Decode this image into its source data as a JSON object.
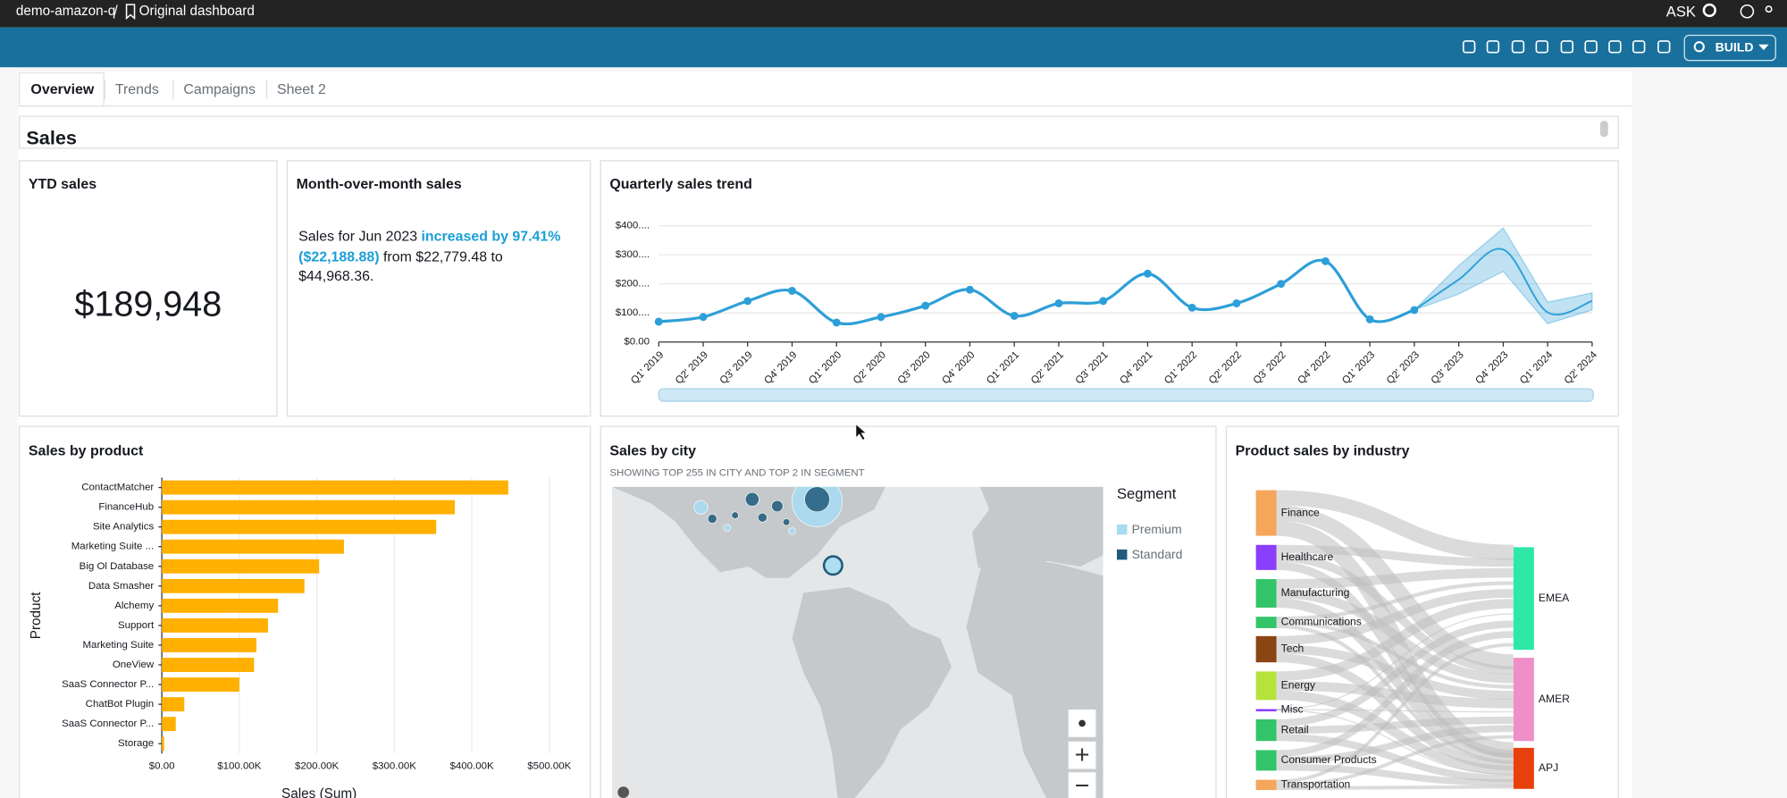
{
  "header": {
    "breadcrumb": "demo-amazon-q",
    "separator": "/",
    "dashboard": "Original dashboard",
    "ask": "ASK",
    "build": "BUILD"
  },
  "tabs": [
    "Overview",
    "Trends",
    "Campaigns",
    "Sheet 2"
  ],
  "section": "Sales",
  "ytd": {
    "title": "YTD sales",
    "value": "$189,948"
  },
  "mom": {
    "title": "Month-over-month sales",
    "prefix": "Sales for Jun 2023",
    "change": "increased by 97.41%",
    "change_amount": "($22,188.88)",
    "from": "from $22,779.48 to",
    "to": "$44,968.36."
  },
  "chart_data": [
    {
      "type": "line",
      "title": "Quarterly sales trend",
      "categories": [
        "Q1' 2019",
        "Q2' 2019",
        "Q3' 2019",
        "Q4' 2019",
        "Q1' 2020",
        "Q2' 2020",
        "Q3' 2020",
        "Q4' 2020",
        "Q1' 2021",
        "Q2' 2021",
        "Q3' 2021",
        "Q4' 2021",
        "Q1' 2022",
        "Q2' 2022",
        "Q3' 2022",
        "Q4' 2022",
        "Q1' 2023",
        "Q2' 2023",
        "Q3' 2023",
        "Q4' 2023",
        "Q1' 2024",
        "Q2' 2024"
      ],
      "series": [
        {
          "color": "#2d9fd8",
          "values": [
            70000,
            86000,
            141000,
            176000,
            67000,
            86000,
            125000,
            180000,
            90000,
            133000,
            141000,
            235000,
            118000,
            133000,
            200000,
            278000,
            78000,
            110000,
            null,
            null,
            null,
            null
          ]
        },
        {
          "color": "#2d9fd8",
          "values": [
            null,
            null,
            null,
            null,
            null,
            null,
            null,
            null,
            null,
            null,
            null,
            null,
            null,
            null,
            null,
            null,
            null,
            110000,
            215000,
            318000,
            102000,
            141000
          ]
        }
      ],
      "band": {
        "color": "#2d9fd8",
        "upper": [
          null,
          null,
          null,
          null,
          null,
          null,
          null,
          null,
          null,
          null,
          null,
          null,
          null,
          null,
          null,
          null,
          null,
          110000,
          263000,
          392000,
          137000,
          169000
        ],
        "lower": [
          null,
          null,
          null,
          null,
          null,
          null,
          null,
          null,
          null,
          null,
          null,
          null,
          null,
          null,
          null,
          null,
          null,
          110000,
          165000,
          243000,
          63000,
          110000
        ]
      },
      "ylim": [
        0,
        400000
      ],
      "yticks": [
        {
          "value": 0,
          "label": "$0.00"
        },
        {
          "value": 100000,
          "label": "$100...."
        },
        {
          "value": 200000,
          "label": "$200...."
        },
        {
          "value": 300000,
          "label": "$300...."
        },
        {
          "value": 400000,
          "label": "$400...."
        }
      ],
      "grid": true
    },
    {
      "type": "bar",
      "orientation": "horizontal",
      "title": "Sales by product",
      "y_label": "Product",
      "x_label": "Sales (Sum)",
      "categories": [
        "ContactMatcher",
        "FinanceHub",
        "Site Analytics",
        "Marketing Suite ...",
        "Big Ol Database",
        "Data Smasher",
        "Alchemy",
        "Support",
        "Marketing Suite",
        "OneView",
        "SaaS Connector P...",
        "ChatBot Plugin",
        "SaaS Connector P...",
        "Storage"
      ],
      "values": [
        447000,
        378000,
        354000,
        235000,
        203000,
        184000,
        150000,
        137000,
        122000,
        119000,
        100000,
        29000,
        18000,
        3000
      ],
      "color": "#ffb000",
      "xlim": [
        0,
        500000
      ],
      "xticks": [
        {
          "value": 0,
          "label": "$0.00"
        },
        {
          "value": 100000,
          "label": "$100.00K"
        },
        {
          "value": 200000,
          "label": "$200.00K"
        },
        {
          "value": 300000,
          "label": "$300.00K"
        },
        {
          "value": 400000,
          "label": "$400.00K"
        },
        {
          "value": 500000,
          "label": "$500.00K"
        }
      ],
      "grid": true
    }
  ],
  "map": {
    "title": "Sales by city",
    "subtitle": "SHOWING TOP 255 IN CITY AND TOP 2 IN SEGMENT",
    "legend_title": "Segment",
    "legend": [
      {
        "name": "Premium",
        "color": "#a6dcf2"
      },
      {
        "name": "Standard",
        "color": "#1f5b7a"
      }
    ]
  },
  "sankey": {
    "title": "Product sales by industry",
    "sources": [
      {
        "name": "Finance",
        "color": "#f5a65b"
      },
      {
        "name": "Healthcare",
        "color": "#8a3ffc"
      },
      {
        "name": "Manufacturing",
        "color": "#33c46a"
      },
      {
        "name": "Communications",
        "color": "#33c46a"
      },
      {
        "name": "Tech",
        "color": "#8b4513"
      },
      {
        "name": "Energy",
        "color": "#b5e33a"
      },
      {
        "name": "Misc",
        "color": "#8a3ffc"
      },
      {
        "name": "Retail",
        "color": "#33c46a"
      },
      {
        "name": "Consumer Products",
        "color": "#33c46a"
      },
      {
        "name": "Transportation",
        "color": "#f5a65b"
      }
    ],
    "targets": [
      {
        "name": "EMEA",
        "color": "#2ee8a8"
      },
      {
        "name": "AMER",
        "color": "#ef8fc8"
      },
      {
        "name": "APJ",
        "color": "#e8400c"
      }
    ]
  }
}
